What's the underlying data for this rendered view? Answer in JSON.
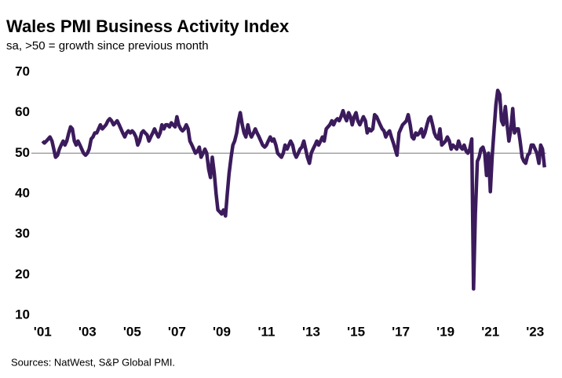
{
  "chart_data": {
    "type": "line",
    "title": "Wales PMI Business Activity Index",
    "subtitle": "sa, >50 = growth  since previous month",
    "source": "Sources: NatWest, S&P Global PMI.",
    "xlim": [
      2000.5,
      2023.5
    ],
    "ylim": [
      10,
      70
    ],
    "yticks": [
      10,
      20,
      30,
      40,
      50,
      60,
      70
    ],
    "xticks": [
      {
        "value": 2001,
        "label": "'01"
      },
      {
        "value": 2003,
        "label": "'03"
      },
      {
        "value": 2005,
        "label": "'05"
      },
      {
        "value": 2007,
        "label": "'07"
      },
      {
        "value": 2009,
        "label": "'09"
      },
      {
        "value": 2011,
        "label": "'11"
      },
      {
        "value": 2013,
        "label": "'13"
      },
      {
        "value": 2015,
        "label": "'15"
      },
      {
        "value": 2017,
        "label": "'17"
      },
      {
        "value": 2019,
        "label": "'19"
      },
      {
        "value": 2021,
        "label": "'21"
      },
      {
        "value": 2023,
        "label": "'23"
      }
    ],
    "baseline": 50,
    "x": [
      2001.0,
      2001.08,
      2001.17,
      2001.25,
      2001.33,
      2001.42,
      2001.5,
      2001.58,
      2001.67,
      2001.75,
      2001.83,
      2001.92,
      2002.0,
      2002.08,
      2002.17,
      2002.25,
      2002.33,
      2002.42,
      2002.5,
      2002.58,
      2002.67,
      2002.75,
      2002.83,
      2002.92,
      2003.0,
      2003.08,
      2003.17,
      2003.25,
      2003.33,
      2003.42,
      2003.5,
      2003.58,
      2003.67,
      2003.75,
      2003.83,
      2003.92,
      2004.0,
      2004.08,
      2004.17,
      2004.25,
      2004.33,
      2004.42,
      2004.5,
      2004.58,
      2004.67,
      2004.75,
      2004.83,
      2004.92,
      2005.0,
      2005.08,
      2005.17,
      2005.25,
      2005.33,
      2005.42,
      2005.5,
      2005.58,
      2005.67,
      2005.75,
      2005.83,
      2005.92,
      2006.0,
      2006.08,
      2006.17,
      2006.25,
      2006.33,
      2006.42,
      2006.5,
      2006.58,
      2006.67,
      2006.75,
      2006.83,
      2006.92,
      2007.0,
      2007.08,
      2007.17,
      2007.25,
      2007.33,
      2007.42,
      2007.5,
      2007.58,
      2007.67,
      2007.75,
      2007.83,
      2007.92,
      2008.0,
      2008.08,
      2008.17,
      2008.25,
      2008.33,
      2008.42,
      2008.5,
      2008.58,
      2008.67,
      2008.75,
      2008.83,
      2008.92,
      2009.0,
      2009.08,
      2009.17,
      2009.25,
      2009.33,
      2009.42,
      2009.5,
      2009.58,
      2009.67,
      2009.75,
      2009.83,
      2009.92,
      2010.0,
      2010.08,
      2010.17,
      2010.25,
      2010.33,
      2010.42,
      2010.5,
      2010.58,
      2010.67,
      2010.75,
      2010.83,
      2010.92,
      2011.0,
      2011.08,
      2011.17,
      2011.25,
      2011.33,
      2011.42,
      2011.5,
      2011.58,
      2011.67,
      2011.75,
      2011.83,
      2011.92,
      2012.0,
      2012.08,
      2012.17,
      2012.25,
      2012.33,
      2012.42,
      2012.5,
      2012.58,
      2012.67,
      2012.75,
      2012.83,
      2012.92,
      2013.0,
      2013.08,
      2013.17,
      2013.25,
      2013.33,
      2013.42,
      2013.5,
      2013.58,
      2013.67,
      2013.75,
      2013.83,
      2013.92,
      2014.0,
      2014.08,
      2014.17,
      2014.25,
      2014.33,
      2014.42,
      2014.5,
      2014.58,
      2014.67,
      2014.75,
      2014.83,
      2014.92,
      2015.0,
      2015.08,
      2015.17,
      2015.25,
      2015.33,
      2015.42,
      2015.5,
      2015.58,
      2015.67,
      2015.75,
      2015.83,
      2015.92,
      2016.0,
      2016.08,
      2016.17,
      2016.25,
      2016.33,
      2016.42,
      2016.5,
      2016.58,
      2016.67,
      2016.75,
      2016.83,
      2016.92,
      2017.0,
      2017.08,
      2017.17,
      2017.25,
      2017.33,
      2017.42,
      2017.5,
      2017.58,
      2017.67,
      2017.75,
      2017.83,
      2017.92,
      2018.0,
      2018.08,
      2018.17,
      2018.25,
      2018.33,
      2018.42,
      2018.5,
      2018.58,
      2018.67,
      2018.75,
      2018.83,
      2018.92,
      2019.0,
      2019.08,
      2019.17,
      2019.25,
      2019.33,
      2019.42,
      2019.5,
      2019.58,
      2019.67,
      2019.75,
      2019.83,
      2019.92,
      2020.0,
      2020.08,
      2020.17,
      2020.25,
      2020.33,
      2020.42,
      2020.5,
      2020.58,
      2020.67,
      2020.75,
      2020.83,
      2020.92,
      2021.0,
      2021.08,
      2021.17,
      2021.25,
      2021.33,
      2021.42,
      2021.5,
      2021.58,
      2021.67,
      2021.75,
      2021.83,
      2021.92,
      2022.0,
      2022.08,
      2022.17,
      2022.25,
      2022.33,
      2022.42,
      2022.5,
      2022.58,
      2022.67,
      2022.75,
      2022.83,
      2022.92,
      2023.0,
      2023.08,
      2023.17,
      2023.25,
      2023.33,
      2023.42
    ],
    "series": [
      {
        "color": "#3b1b5c",
        "values": [
          53,
          52.5,
          53,
          53.5,
          54,
          53,
          51,
          49,
          49.5,
          51,
          52,
          53,
          52,
          53,
          55,
          56.5,
          56,
          53,
          52,
          53,
          52,
          51,
          50,
          49.5,
          50,
          51,
          53.5,
          54,
          55,
          55,
          56,
          57,
          56,
          56.5,
          57,
          58,
          58.5,
          58,
          57,
          57.5,
          58,
          57,
          56,
          55,
          54,
          55,
          55.5,
          55,
          55.5,
          55,
          54,
          52,
          53,
          55,
          55.5,
          55,
          54.5,
          53,
          54,
          55,
          56,
          55,
          54,
          55,
          57,
          56,
          57,
          57,
          56.5,
          57.5,
          57,
          56.5,
          59,
          57,
          56,
          55.5,
          56,
          57,
          56,
          53,
          52,
          51,
          50,
          50.5,
          51.5,
          49,
          50,
          51,
          50,
          46,
          44,
          49,
          45,
          40,
          36,
          35.5,
          35,
          36,
          34.5,
          40,
          45,
          49,
          52,
          53,
          55,
          58,
          60,
          57,
          55,
          54,
          57,
          55,
          54,
          55,
          56,
          55,
          54,
          53,
          52,
          51.5,
          52,
          53,
          54,
          53,
          53.5,
          52,
          50,
          49.5,
          49,
          50,
          52,
          51,
          52,
          53,
          52,
          50,
          49,
          50,
          51,
          51.5,
          53,
          51,
          49,
          47.5,
          50,
          51,
          52,
          53,
          52,
          53,
          54,
          53,
          56,
          56.5,
          57,
          58,
          57,
          58,
          58.5,
          58,
          59,
          60.5,
          59,
          58,
          60,
          59,
          57,
          59,
          60,
          58,
          57,
          58,
          59,
          58,
          55,
          56,
          55.5,
          56,
          59.5,
          59,
          58,
          57,
          56,
          55.5,
          54,
          55,
          55.5,
          54,
          52.5,
          51,
          49.5,
          55,
          56,
          57,
          57.5,
          58,
          59.5,
          57,
          54,
          53.5,
          55,
          54.5,
          55,
          56,
          54,
          55,
          57,
          58.5,
          59,
          57,
          55,
          54,
          53.5,
          56,
          52,
          52.5,
          53,
          54,
          53,
          51,
          52,
          51.5,
          51,
          53,
          51.5,
          51,
          52,
          50.5,
          50,
          51,
          53.5,
          16.5,
          35,
          48,
          49,
          51,
          51.5,
          50,
          44.5,
          50,
          40.5,
          49,
          56,
          62,
          65.5,
          64.5,
          58,
          57,
          61.5,
          57,
          53,
          56,
          61,
          55,
          56,
          56,
          53,
          49,
          48,
          47.5,
          49.5,
          50,
          52,
          52,
          51,
          50,
          47.5,
          52,
          51,
          46.5
        ]
      }
    ]
  }
}
